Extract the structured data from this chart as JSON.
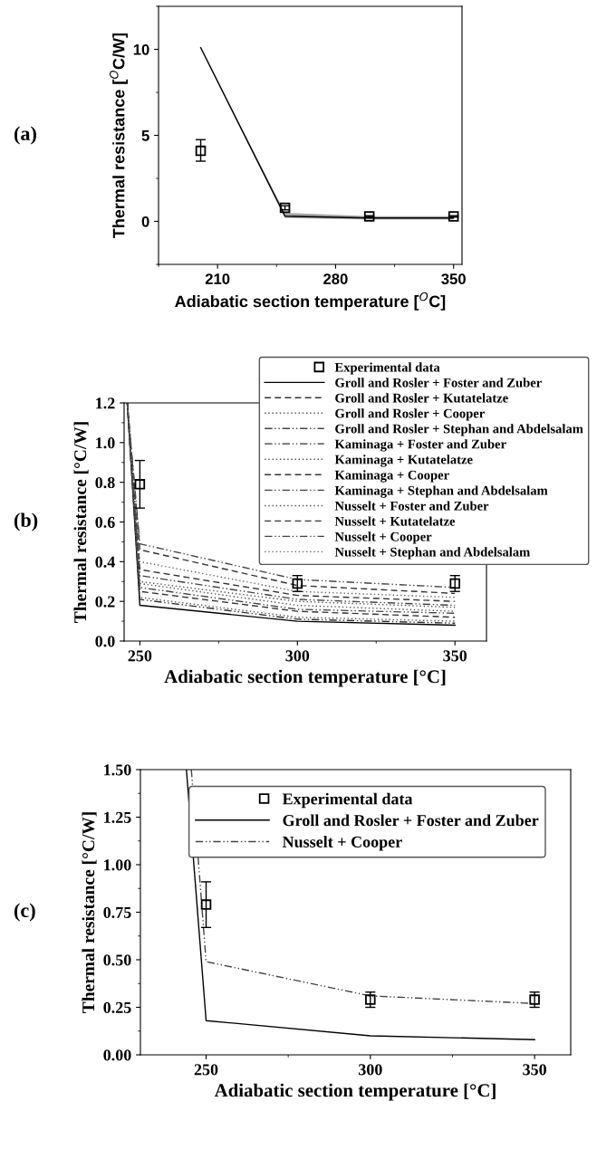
{
  "chart_data": [
    {
      "type": "line",
      "xlabel": "Adiabatic section temperature [$^{O}$C]",
      "ylabel": "Thermal resistance [$^{O}$C/W]",
      "annotations": [
        "(a)"
      ],
      "xlim": [
        175,
        355
      ],
      "ylim": [
        -2.5,
        12.5
      ],
      "xticks": [
        210,
        280,
        350
      ],
      "yticks": [
        0,
        5,
        10
      ],
      "grid": false,
      "legend": false,
      "series": [
        {
          "type": "scatter",
          "marker": "square",
          "color": "#000000",
          "x": [
            200,
            250,
            300,
            350
          ],
          "values": [
            4.1,
            0.79,
            0.29,
            0.29
          ],
          "errors": [
            [
              3.5,
              4.75
            ],
            [
              0.67,
              0.91
            ],
            [
              0.25,
              0.33
            ],
            [
              0.25,
              0.33
            ]
          ]
        },
        {
          "color": "#000000",
          "line_style": "solid",
          "x": [
            200,
            250,
            300,
            350
          ],
          "values": [
            10.1,
            0.3,
            0.2,
            0.2
          ],
          "lower": [
            10.1,
            0.2,
            0.1,
            0.1
          ],
          "upper": [
            10.1,
            0.5,
            0.3,
            0.3
          ]
        }
      ]
    },
    {
      "type": "line",
      "xlabel": "Adiabatic section temperature [°C]",
      "ylabel": "Thermal resistance [°C/W]",
      "annotations": [
        "(b)"
      ],
      "xlim": [
        245,
        360
      ],
      "ylim": [
        0,
        1.2
      ],
      "xticks": [
        250,
        300,
        350
      ],
      "yticks": [
        {
          "value": 0,
          "label": "0.0"
        },
        0.2,
        0.4,
        0.6,
        0.8,
        {
          "value": 1,
          "label": "1.0"
        },
        1.2
      ],
      "grid": false,
      "legend": "top right",
      "series": [
        {
          "name": "Experimental data",
          "type": "scatter",
          "marker": "square",
          "color": "#000000",
          "x": [
            250,
            300,
            350
          ],
          "values": [
            0.79,
            0.29,
            0.29
          ],
          "errors": [
            [
              0.67,
              0.91
            ],
            [
              0.25,
              0.33
            ],
            [
              0.25,
              0.33
            ]
          ]
        },
        {
          "name": "Groll and Rosler + Foster and Zuber",
          "color": "#000000",
          "line_style": "solid",
          "x": [
            246,
            250,
            300,
            350
          ],
          "values": [
            1.2,
            0.18,
            0.1,
            0.08
          ]
        },
        {
          "name": "Groll and Rosler + Kutatelatze",
          "color": "#333333",
          "line_style": "dashed",
          "x": [
            246,
            250,
            300,
            350
          ],
          "values": [
            1.2,
            0.25,
            0.15,
            0.12
          ]
        },
        {
          "name": "Groll and Rosler + Cooper",
          "color": "#555555",
          "line_style": "dotted",
          "x": [
            246,
            250,
            300,
            350
          ],
          "values": [
            1.2,
            0.3,
            0.2,
            0.17
          ]
        },
        {
          "name": "Groll and Rosler + Stephan and Abdelsalam",
          "color": "#444444",
          "line_style": "dashdot",
          "x": [
            246,
            250,
            300,
            350
          ],
          "values": [
            1.2,
            0.27,
            0.16,
            0.14
          ]
        },
        {
          "name": "Kaminaga + Foster and Zuber",
          "color": "#333333",
          "line_style": "dashdot",
          "x": [
            246,
            250,
            300,
            350
          ],
          "values": [
            1.2,
            0.21,
            0.11,
            0.09
          ]
        },
        {
          "name": "Kaminaga + Kutatelatze",
          "color": "#555555",
          "line_style": "dotted",
          "x": [
            246,
            250,
            300,
            350
          ],
          "values": [
            1.2,
            0.29,
            0.18,
            0.15
          ]
        },
        {
          "name": "Kaminaga + Cooper",
          "color": "#333333",
          "line_style": "dashed",
          "x": [
            246,
            250,
            300,
            350
          ],
          "values": [
            1.2,
            0.36,
            0.23,
            0.2
          ]
        },
        {
          "name": "Kaminaga + Stephan and Abdelsalam",
          "color": "#444444",
          "line_style": "dashdot",
          "x": [
            246,
            250,
            300,
            350
          ],
          "values": [
            1.2,
            0.33,
            0.21,
            0.18
          ]
        },
        {
          "name": "Nusselt + Foster and Zuber",
          "color": "#555555",
          "line_style": "dotted",
          "x": [
            246,
            250,
            300,
            350
          ],
          "values": [
            1.2,
            0.22,
            0.12,
            0.1
          ]
        },
        {
          "name": "Nusselt + Kutatelatze",
          "color": "#333333",
          "line_style": "dashed",
          "x": [
            246,
            250,
            300,
            350
          ],
          "values": [
            1.2,
            0.46,
            0.28,
            0.24
          ]
        },
        {
          "name": "Nusselt + Cooper",
          "color": "#444444",
          "line_style": "dashdot",
          "x": [
            246,
            250,
            300,
            350
          ],
          "values": [
            1.2,
            0.49,
            0.31,
            0.27
          ]
        },
        {
          "name": "Nusselt + Stephan and Abdelsalam",
          "color": "#666666",
          "line_style": "dotted",
          "x": [
            246,
            250,
            300,
            350
          ],
          "values": [
            1.2,
            0.4,
            0.25,
            0.22
          ]
        }
      ]
    },
    {
      "type": "line",
      "xlabel": "Adiabatic section temperature [°C]",
      "ylabel": "Thermal resistance [°C/W]",
      "annotations": [
        "(c)"
      ],
      "xlim": [
        230,
        361
      ],
      "ylim": [
        0,
        1.5
      ],
      "xticks": [
        250,
        300,
        350
      ],
      "yticks": [
        {
          "value": 0,
          "label": "0.00"
        },
        0.25,
        {
          "value": 0.5,
          "label": "0.50"
        },
        0.75,
        {
          "value": 1,
          "label": "1.00"
        },
        1.25,
        {
          "value": 1.5,
          "label": "1.50"
        }
      ],
      "grid": false,
      "legend": "top right",
      "series": [
        {
          "name": "Experimental data",
          "type": "scatter",
          "marker": "square",
          "color": "#000000",
          "x": [
            250,
            300,
            350
          ],
          "values": [
            0.79,
            0.29,
            0.29
          ],
          "errors": [
            [
              0.67,
              0.91
            ],
            [
              0.25,
              0.33
            ],
            [
              0.25,
              0.33
            ]
          ]
        },
        {
          "name": "Groll and Rosler + Foster and Zuber",
          "color": "#000000",
          "line_style": "solid",
          "x": [
            244,
            250,
            300,
            350
          ],
          "values": [
            1.5,
            0.18,
            0.1,
            0.08
          ]
        },
        {
          "name": "Nusselt + Cooper",
          "color": "#444444",
          "line_style": "dashdot",
          "x": [
            245.5,
            250,
            300,
            350
          ],
          "values": [
            1.5,
            0.49,
            0.31,
            0.27
          ]
        }
      ]
    }
  ]
}
